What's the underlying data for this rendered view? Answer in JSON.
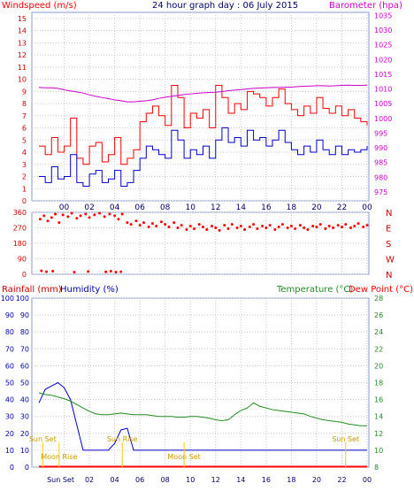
{
  "header": {
    "wind_label": "Windspeed (m/s)",
    "title": "24 hour graph day : 06 July 2015",
    "baro_label": "Barometer (hpa)"
  },
  "panel_labels": {
    "rainfall": "Rainfall (mm)",
    "humidity": "Humidity (%)",
    "temperature": "Temperature (°C)",
    "dewpoint": "Dew Point (°C)"
  },
  "colors": {
    "wind_gust": "#ff0000",
    "wind_avg": "#0000cc",
    "barometer": "#cc00cc",
    "direction": "#ff0000",
    "humidity": "#0000cc",
    "rain": "#ff0000",
    "temperature": "#228b22",
    "dewpoint": "#ff0000",
    "sun": "#ffcc00",
    "moon": "#ffcc00"
  },
  "chart_data": [
    {
      "type": "line",
      "panel": "wind-barometer",
      "title": "24 hour graph day : 06 July 2015",
      "xlabel": "",
      "x_ticks": [
        "00",
        "02",
        "04",
        "06",
        "08",
        "10",
        "12",
        "14",
        "16",
        "18",
        "20",
        "22",
        "00"
      ],
      "y_left": {
        "label": "Windspeed (m/s)",
        "ticks": [
          0,
          1,
          2,
          3,
          4,
          5,
          6,
          7,
          8,
          9,
          10,
          11,
          12,
          13,
          14,
          15
        ],
        "lim": [
          0,
          15.5
        ]
      },
      "y_right": {
        "label": "Barometer (hpa)",
        "ticks": [
          975,
          980,
          985,
          990,
          995,
          1000,
          1005,
          1010,
          1015,
          1020,
          1025,
          1030,
          1035
        ],
        "lim": [
          972,
          1036
        ]
      },
      "x_hours": [
        -2,
        -1.5,
        -1,
        -0.5,
        0,
        0.5,
        1,
        1.5,
        2,
        2.5,
        3,
        3.5,
        4,
        4.5,
        5,
        5.5,
        6,
        6.5,
        7,
        7.5,
        8,
        8.5,
        9,
        9.5,
        10,
        10.5,
        11,
        11.5,
        12,
        12.5,
        13,
        13.5,
        14,
        14.5,
        15,
        15.5,
        16,
        16.5,
        17,
        17.5,
        18,
        18.5,
        19,
        19.5,
        20,
        20.5,
        21,
        21.5,
        22,
        22.5,
        23,
        23.5,
        24
      ],
      "series": [
        {
          "name": "Gust",
          "axis": "left",
          "values": [
            4.5,
            3.8,
            5.2,
            4,
            4.5,
            6.8,
            3.5,
            3,
            4.5,
            4.8,
            3.2,
            3.8,
            5.2,
            3,
            3.5,
            4.2,
            6.5,
            7.2,
            7.8,
            7,
            6.2,
            9.5,
            8.5,
            6,
            7.2,
            6.8,
            7.5,
            6,
            9.5,
            8.5,
            7.2,
            8,
            7.5,
            9,
            8.8,
            8.5,
            7.8,
            8.5,
            9.2,
            8,
            7.5,
            7,
            7.8,
            7.2,
            8.5,
            7.6,
            7.2,
            7.8,
            7,
            7.5,
            6.8,
            6.5,
            6.2
          ]
        },
        {
          "name": "Average",
          "axis": "left",
          "values": [
            2,
            1.5,
            2.8,
            1.8,
            2,
            3.8,
            1.5,
            1.2,
            2.2,
            2.5,
            1.5,
            1.8,
            2.5,
            1.2,
            1.5,
            2.5,
            3.5,
            4.5,
            4.2,
            3.8,
            3.5,
            5.8,
            5,
            3.5,
            4.2,
            3.8,
            4.5,
            3.5,
            5,
            6,
            4.8,
            5.2,
            4.5,
            5.8,
            5,
            5.2,
            4.5,
            5,
            5.8,
            4.8,
            4.2,
            3.8,
            4.5,
            4,
            5,
            4.2,
            3.8,
            4.5,
            3.8,
            4.2,
            4,
            4.2,
            4.5
          ]
        },
        {
          "name": "Barometer",
          "axis": "right",
          "values": [
            1010.5,
            1010.4,
            1010.4,
            1010.2,
            1009.7,
            1009.3,
            1009,
            1008.6,
            1008,
            1007.5,
            1007.1,
            1006.7,
            1006.3,
            1006,
            1005.6,
            1005.6,
            1005.8,
            1006,
            1006.3,
            1006.8,
            1007.2,
            1007.5,
            1007.8,
            1008.1,
            1008.3,
            1008.5,
            1008.7,
            1008.8,
            1008.9,
            1009.1,
            1009.4,
            1009.6,
            1009.8,
            1010,
            1010.2,
            1010.3,
            1010.4,
            1010.5,
            1010.5,
            1010.6,
            1010.6,
            1010.8,
            1010.9,
            1011,
            1011.1,
            1011.1,
            1011,
            1011.1,
            1011.2,
            1011.3,
            1011.2,
            1011.2,
            1011.3
          ]
        }
      ]
    },
    {
      "type": "scatter",
      "panel": "wind-direction",
      "x_ticks": [
        "00",
        "02",
        "04",
        "06",
        "08",
        "10",
        "12",
        "14",
        "16",
        "18",
        "20",
        "22",
        "00"
      ],
      "y_ticks": [
        0,
        90,
        180,
        270,
        360
      ],
      "y_labels_right": [
        "N",
        "W",
        "S",
        "E",
        "N"
      ],
      "ylim": [
        0,
        360
      ],
      "points": [
        [
          -1.9,
          320
        ],
        [
          -1.6,
          340
        ],
        [
          -1.3,
          310
        ],
        [
          -1.0,
          330
        ],
        [
          -0.7,
          350
        ],
        [
          -0.4,
          300
        ],
        [
          -0.1,
          345
        ],
        [
          0.3,
          335
        ],
        [
          0.6,
          355
        ],
        [
          1.0,
          325
        ],
        [
          1.3,
          340
        ],
        [
          1.7,
          350
        ],
        [
          2.0,
          330
        ],
        [
          2.4,
          345
        ],
        [
          2.8,
          355
        ],
        [
          3.2,
          335
        ],
        [
          3.6,
          350
        ],
        [
          4.0,
          340
        ],
        [
          4.3,
          320
        ],
        [
          4.6,
          350
        ],
        [
          5.0,
          300
        ],
        [
          5.3,
          290
        ],
        [
          5.7,
          310
        ],
        [
          6.0,
          285
        ],
        [
          6.3,
          300
        ],
        [
          6.7,
          275
        ],
        [
          7.0,
          295
        ],
        [
          7.3,
          280
        ],
        [
          7.7,
          305
        ],
        [
          8.0,
          290
        ],
        [
          8.3,
          275
        ],
        [
          8.7,
          300
        ],
        [
          9.0,
          270
        ],
        [
          9.3,
          285
        ],
        [
          9.7,
          260
        ],
        [
          10.0,
          280
        ],
        [
          10.3,
          265
        ],
        [
          10.7,
          290
        ],
        [
          11.0,
          275
        ],
        [
          11.3,
          260
        ],
        [
          11.7,
          280
        ],
        [
          12.0,
          270
        ],
        [
          12.3,
          255
        ],
        [
          12.7,
          285
        ],
        [
          13.0,
          265
        ],
        [
          13.3,
          290
        ],
        [
          13.7,
          270
        ],
        [
          14.0,
          280
        ],
        [
          14.3,
          260
        ],
        [
          14.7,
          275
        ],
        [
          15.0,
          290
        ],
        [
          15.3,
          265
        ],
        [
          15.7,
          280
        ],
        [
          16.0,
          270
        ],
        [
          16.3,
          285
        ],
        [
          16.7,
          260
        ],
        [
          17.0,
          275
        ],
        [
          17.3,
          290
        ],
        [
          17.7,
          270
        ],
        [
          18.0,
          280
        ],
        [
          18.3,
          265
        ],
        [
          18.7,
          285
        ],
        [
          19.0,
          270
        ],
        [
          19.3,
          260
        ],
        [
          19.7,
          280
        ],
        [
          20.0,
          275
        ],
        [
          20.3,
          290
        ],
        [
          20.7,
          265
        ],
        [
          21.0,
          280
        ],
        [
          21.3,
          270
        ],
        [
          21.7,
          285
        ],
        [
          22.0,
          275
        ],
        [
          22.3,
          290
        ],
        [
          22.7,
          270
        ],
        [
          23.0,
          280
        ],
        [
          23.3,
          295
        ],
        [
          23.7,
          275
        ],
        [
          24.0,
          285
        ],
        [
          -1.8,
          20
        ],
        [
          -1.4,
          15
        ],
        [
          -0.9,
          18
        ],
        [
          0.8,
          12
        ],
        [
          1.9,
          16
        ],
        [
          3.3,
          14
        ],
        [
          3.7,
          18
        ],
        [
          4.1,
          12
        ],
        [
          4.5,
          15
        ]
      ]
    },
    {
      "type": "line",
      "panel": "rain-humidity-temperature",
      "x_ticks": [
        "Sun Set",
        "02",
        "04",
        "06",
        "08",
        "10",
        "12",
        "14",
        "16",
        "18",
        "20",
        "22",
        "00"
      ],
      "y_left": {
        "label": "Rainfall (mm) / Humidity (%)",
        "ticks": [
          0,
          10,
          20,
          30,
          40,
          50,
          60,
          70,
          80,
          90,
          100
        ],
        "lim": [
          0,
          100
        ]
      },
      "y_right": {
        "label": "Temperature (°C)",
        "ticks": [
          8,
          10,
          12,
          14,
          16,
          18,
          20,
          22,
          24,
          26,
          28
        ],
        "lim": [
          8,
          28
        ]
      },
      "x_hours": [
        -2,
        -1.5,
        -1,
        -0.5,
        0,
        0.5,
        1,
        1.5,
        2,
        2.5,
        3,
        3.5,
        4,
        4.5,
        5,
        5.5,
        6,
        6.5,
        7,
        7.5,
        8,
        8.5,
        9,
        9.5,
        10,
        10.5,
        11,
        11.5,
        12,
        12.5,
        13,
        13.5,
        14,
        14.5,
        15,
        15.5,
        16,
        16.5,
        17,
        17.5,
        18,
        18.5,
        19,
        19.5,
        20,
        20.5,
        21,
        21.5,
        22,
        22.5,
        23,
        23.5,
        24
      ],
      "series": [
        {
          "name": "Humidity",
          "axis": "left",
          "values": [
            38,
            46,
            48,
            50,
            47,
            40,
            25,
            10,
            10,
            10,
            10,
            10,
            14,
            22,
            23,
            10,
            10,
            10,
            10,
            10,
            10,
            10,
            10,
            10,
            10,
            10,
            10,
            10,
            10,
            10,
            10,
            10,
            10,
            10,
            10,
            10,
            10,
            10,
            10,
            10,
            10,
            10,
            10,
            10,
            10,
            10,
            10,
            10,
            10,
            10,
            10,
            10,
            10
          ]
        },
        {
          "name": "Temperature",
          "axis": "right",
          "values": [
            16.8,
            16.6,
            16.5,
            16.3,
            16.1,
            15.8,
            15.4,
            15,
            14.6,
            14.3,
            14.2,
            14.2,
            14.3,
            14.4,
            14.3,
            14.2,
            14.2,
            14.2,
            14.1,
            14,
            14,
            14,
            13.9,
            13.9,
            14,
            14,
            13.9,
            13.8,
            13.6,
            13.5,
            13.6,
            14.2,
            14.7,
            15,
            15.6,
            15.2,
            15,
            14.8,
            14.7,
            14.6,
            14.5,
            14.4,
            14.3,
            14,
            13.8,
            13.6,
            13.5,
            13.4,
            13.3,
            13.1,
            13,
            12.9,
            12.9
          ]
        },
        {
          "name": "Dew Point",
          "axis": "right",
          "values": [
            8.1,
            8.1,
            8.1,
            8.1,
            8.1,
            8.1,
            8.1,
            8.1,
            8.1,
            8.1,
            8.1,
            8.1,
            8.1,
            8.1,
            8.1,
            8.1,
            8.1,
            8.1,
            8.1,
            8.1,
            8.1,
            8.1,
            8.1,
            8.1,
            8.1,
            8.1,
            8.1,
            8.1,
            8.1,
            8.1,
            8.1,
            8.1,
            8.1,
            8.1,
            8.1,
            8.1,
            8.1,
            8.1,
            8.1,
            8.1,
            8.1,
            8.1,
            8.1,
            8.1,
            8.1,
            8.1,
            8.1,
            8.1,
            8.1,
            8.1,
            8.1,
            8.1,
            8.1
          ]
        },
        {
          "name": "Rainfall",
          "axis": "left",
          "values": [
            0,
            0,
            0,
            0,
            0,
            0,
            0,
            0,
            0,
            0,
            0,
            0,
            0,
            0,
            0,
            0,
            0,
            0,
            0,
            0,
            0,
            0,
            0,
            0,
            0,
            0,
            0,
            0,
            0,
            0,
            0,
            0,
            0,
            0,
            0,
            0,
            0,
            0,
            0,
            0,
            0,
            0,
            0,
            0,
            0,
            0,
            0,
            0,
            0,
            0,
            0,
            0,
            0
          ]
        }
      ],
      "annotations": [
        {
          "text": "Sun Set",
          "x_hour": -1.7
        },
        {
          "text": "Moon Rise",
          "x_hour": -0.4
        },
        {
          "text": "Sun Rise",
          "x_hour": 4.6
        },
        {
          "text": "Moon Set",
          "x_hour": 9.5
        },
        {
          "text": "Sun Set",
          "x_hour": 22.3
        }
      ]
    }
  ]
}
